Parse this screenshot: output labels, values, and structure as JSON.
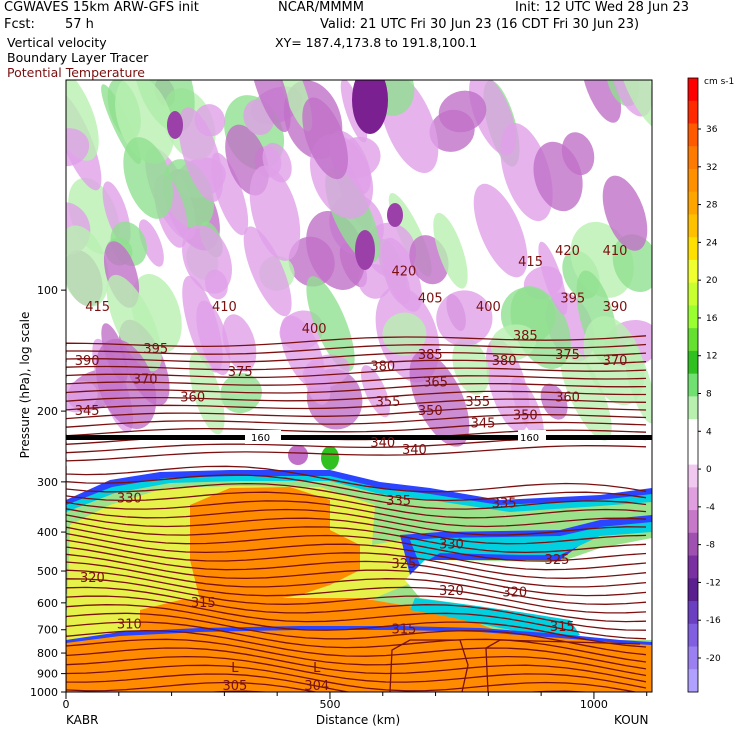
{
  "header": {
    "model": "CGWAVES 15km ARW-GFS init",
    "org": "NCAR/MMMM",
    "init": "Init: 12 UTC Wed 28 Jun 23",
    "fcst_label": "Fcst:",
    "fcst_value": "57 h",
    "valid": "Valid: 21 UTC Fri 30 Jun 23 (16 CDT Fri 30 Jun 23)",
    "field1": "Vertical velocity",
    "field2": "Boundary Layer Tracer",
    "field3": "Potential Temperature",
    "xy": "XY= 187.4,173.8 to 191.8,100.1"
  },
  "colors": {
    "theta": "#7a1010",
    "tracer_low": "#2a44ff",
    "tracer_mid": "#00d0e0",
    "tracer_green": "#9be28a",
    "tracer_yellow": "#e6f24a",
    "tracer_orange": "#ff8c00"
  },
  "chart_data": {
    "type": "heatmap",
    "title": "Vertical velocity / Boundary Layer Tracer / Potential Temperature cross section",
    "xlabel": "Distance (km)",
    "ylabel": "Pressure (hPa), log scale",
    "x_endpoints": [
      "KABR",
      "KOUN"
    ],
    "xticks": [
      0,
      500,
      1000
    ],
    "xlim": [
      0,
      1110
    ],
    "yticks": [
      1000,
      900,
      800,
      700,
      600,
      500,
      400,
      300,
      200,
      100
    ],
    "ylim": [
      1000,
      30
    ],
    "y_scale": "log",
    "colorbar": {
      "unit": "cm s-1",
      "labels": [
        36,
        32,
        28,
        24,
        20,
        16,
        12,
        8,
        4,
        0,
        -4,
        -8,
        -12,
        -16,
        -20
      ]
    },
    "theta_isentropes_K": [
      305,
      310,
      315,
      320,
      325,
      330,
      335,
      340,
      345,
      350,
      355,
      360,
      365,
      370,
      375,
      380,
      385,
      390,
      395,
      400,
      405,
      410,
      415,
      420
    ],
    "low_markers": [
      {
        "x_km": 320,
        "label": "L",
        "value": "305"
      },
      {
        "x_km": 475,
        "label": "L",
        "value": "304"
      }
    ],
    "tropopause_marker": "160",
    "theta_labels": [
      {
        "x_km": 60,
        "p": 110,
        "v": "415"
      },
      {
        "x_km": 40,
        "p": 150,
        "v": "390"
      },
      {
        "x_km": 150,
        "p": 167,
        "v": "370"
      },
      {
        "x_km": 170,
        "p": 140,
        "v": "395"
      },
      {
        "x_km": 300,
        "p": 110,
        "v": "410"
      },
      {
        "x_km": 330,
        "p": 160,
        "v": "375"
      },
      {
        "x_km": 240,
        "p": 185,
        "v": "360"
      },
      {
        "x_km": 40,
        "p": 200,
        "v": "345"
      },
      {
        "x_km": 470,
        "p": 125,
        "v": "400"
      },
      {
        "x_km": 600,
        "p": 155,
        "v": "380"
      },
      {
        "x_km": 640,
        "p": 90,
        "v": "420"
      },
      {
        "x_km": 690,
        "p": 105,
        "v": "405"
      },
      {
        "x_km": 690,
        "p": 145,
        "v": "385"
      },
      {
        "x_km": 700,
        "p": 170,
        "v": "365"
      },
      {
        "x_km": 610,
        "p": 190,
        "v": "355"
      },
      {
        "x_km": 690,
        "p": 200,
        "v": "350"
      },
      {
        "x_km": 780,
        "p": 190,
        "v": "355"
      },
      {
        "x_km": 800,
        "p": 110,
        "v": "400"
      },
      {
        "x_km": 830,
        "p": 150,
        "v": "380"
      },
      {
        "x_km": 880,
        "p": 85,
        "v": "415"
      },
      {
        "x_km": 870,
        "p": 130,
        "v": "385"
      },
      {
        "x_km": 870,
        "p": 205,
        "v": "350"
      },
      {
        "x_km": 790,
        "p": 215,
        "v": "345"
      },
      {
        "x_km": 950,
        "p": 80,
        "v": "420"
      },
      {
        "x_km": 960,
        "p": 105,
        "v": "395"
      },
      {
        "x_km": 950,
        "p": 145,
        "v": "375"
      },
      {
        "x_km": 950,
        "p": 185,
        "v": "360"
      },
      {
        "x_km": 1040,
        "p": 80,
        "v": "410"
      },
      {
        "x_km": 1040,
        "p": 110,
        "v": "390"
      },
      {
        "x_km": 1040,
        "p": 150,
        "v": "370"
      },
      {
        "x_km": 600,
        "p": 240,
        "v": "340"
      },
      {
        "x_km": 660,
        "p": 250,
        "v": "340"
      },
      {
        "x_km": 120,
        "p": 330,
        "v": "330"
      },
      {
        "x_km": 630,
        "p": 335,
        "v": "335"
      },
      {
        "x_km": 830,
        "p": 340,
        "v": "335"
      },
      {
        "x_km": 730,
        "p": 430,
        "v": "330"
      },
      {
        "x_km": 640,
        "p": 480,
        "v": "325"
      },
      {
        "x_km": 930,
        "p": 470,
        "v": "325"
      },
      {
        "x_km": 50,
        "p": 520,
        "v": "320"
      },
      {
        "x_km": 730,
        "p": 560,
        "v": "320"
      },
      {
        "x_km": 850,
        "p": 565,
        "v": "320"
      },
      {
        "x_km": 260,
        "p": 600,
        "v": "315"
      },
      {
        "x_km": 640,
        "p": 700,
        "v": "315"
      },
      {
        "x_km": 940,
        "p": 690,
        "v": "315"
      },
      {
        "x_km": 120,
        "p": 680,
        "v": "310"
      }
    ]
  }
}
